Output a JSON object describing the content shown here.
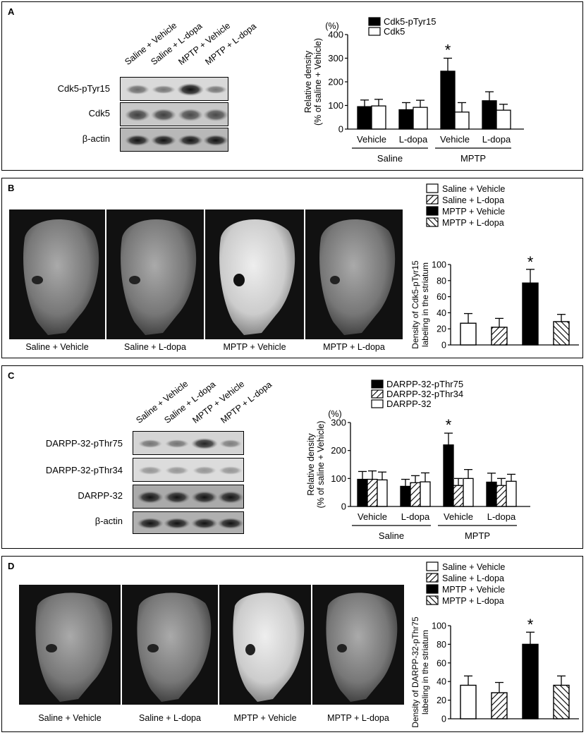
{
  "lanes": [
    "Saline + Vehicle",
    "Saline + L-dopa",
    "MPTP + Vehicle",
    "MPTP + L-dopa"
  ],
  "panelA": {
    "label": "A",
    "blots": [
      "Cdk5-pTyr15",
      "Cdk5",
      "β-actin"
    ],
    "unit": "(%)",
    "ylabel1": "Relative density",
    "ylabel2": "(% of saline + Vehicle)",
    "group_labels": [
      "Saline",
      "MPTP"
    ],
    "sig": "*"
  },
  "panelB": {
    "label": "B",
    "ylabel1": "Density of Cdk5-pTyr15",
    "ylabel2": "labeling in the striatum",
    "sig": "*"
  },
  "panelC": {
    "label": "C",
    "blots": [
      "DARPP-32-pThr75",
      "DARPP-32-pThr34",
      "DARPP-32",
      "β-actin"
    ],
    "unit": "(%)",
    "ylabel1": "Relative density",
    "ylabel2": "(% of saline + Vehicle)",
    "group_labels": [
      "Saline",
      "MPTP"
    ],
    "sig": "*"
  },
  "panelD": {
    "label": "D",
    "ylabel1": "Density of DARPP-32-pThr75",
    "ylabel2": "labeling in the striatum",
    "sig": "*"
  },
  "chart_data": [
    {
      "type": "bar",
      "panel": "A",
      "categories": [
        "Vehicle",
        "L-dopa",
        "Vehicle",
        "L-dopa"
      ],
      "groups": [
        "Saline",
        "MPTP"
      ],
      "series": [
        {
          "name": "Cdk5-pTyr15",
          "color": "#000000",
          "pattern": "solid",
          "values": [
            95,
            82,
            245,
            120
          ],
          "errors": [
            28,
            30,
            55,
            38
          ]
        },
        {
          "name": "Cdk5",
          "color": "#ffffff",
          "pattern": "open",
          "values": [
            98,
            92,
            72,
            80
          ],
          "errors": [
            28,
            30,
            40,
            25
          ]
        }
      ],
      "ylim": [
        0,
        400
      ],
      "yticks": [
        0,
        100,
        200,
        300,
        400
      ],
      "ylabel": "Relative density (% of saline + Vehicle)",
      "significant": [
        2
      ]
    },
    {
      "type": "bar",
      "panel": "B",
      "categories": [
        "Saline + Vehicle",
        "Saline + L-dopa",
        "MPTP + Vehicle",
        "MPTP + L-dopa"
      ],
      "values": [
        27,
        22,
        77,
        29
      ],
      "errors": [
        12,
        11,
        17,
        9
      ],
      "patterns": [
        "open",
        "backslash",
        "solid",
        "slash"
      ],
      "ylim": [
        0,
        100
      ],
      "yticks": [
        0,
        20,
        40,
        60,
        80,
        100
      ],
      "ylabel": "Density of Cdk5-pTyr15 labeling in the striatum",
      "significant": [
        2
      ]
    },
    {
      "type": "bar",
      "panel": "C",
      "categories": [
        "Vehicle",
        "L-dopa",
        "Vehicle",
        "L-dopa"
      ],
      "groups": [
        "Saline",
        "MPTP"
      ],
      "series": [
        {
          "name": "DARPP-32-pThr75",
          "color": "#000000",
          "pattern": "solid",
          "values": [
            97,
            72,
            220,
            87
          ],
          "errors": [
            28,
            25,
            42,
            32
          ]
        },
        {
          "name": "DARPP-32-pThr34",
          "color": "#ffffff",
          "pattern": "backslash",
          "values": [
            97,
            85,
            75,
            75
          ],
          "errors": [
            30,
            25,
            25,
            25
          ]
        },
        {
          "name": "DARPP-32",
          "color": "#ffffff",
          "pattern": "open",
          "values": [
            95,
            88,
            100,
            90
          ],
          "errors": [
            28,
            32,
            32,
            25
          ]
        }
      ],
      "ylim": [
        0,
        300
      ],
      "yticks": [
        0,
        100,
        200,
        300
      ],
      "ylabel": "Relative density (% of saline + Vehicle)",
      "significant": [
        2
      ]
    },
    {
      "type": "bar",
      "panel": "D",
      "categories": [
        "Saline + Vehicle",
        "Saline + L-dopa",
        "MPTP + Vehicle",
        "MPTP + L-dopa"
      ],
      "values": [
        36,
        28,
        80,
        36
      ],
      "errors": [
        10,
        11,
        13,
        10
      ],
      "patterns": [
        "open",
        "backslash",
        "solid",
        "slash"
      ],
      "ylim": [
        0,
        100
      ],
      "yticks": [
        0,
        20,
        40,
        60,
        80,
        100
      ],
      "ylabel": "Density of DARPP-32-pThr75 labeling in the striatum",
      "significant": [
        2
      ]
    }
  ]
}
